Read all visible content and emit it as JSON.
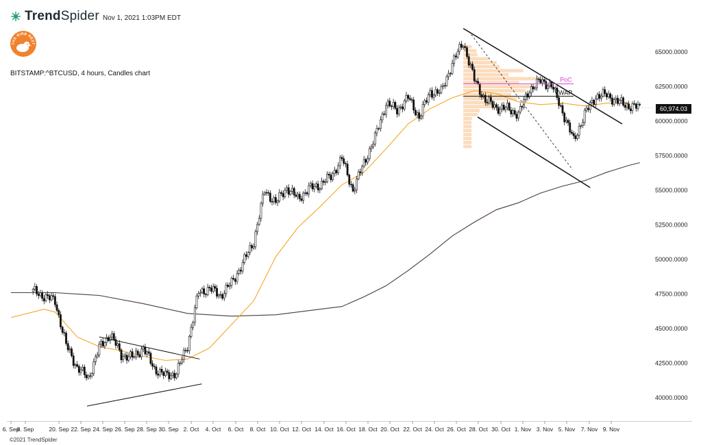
{
  "header": {
    "brand_bold": "Trend",
    "brand_light": "Spider",
    "timestamp": "Nov 1, 2021 1:03PM EDT",
    "logo_text": "THE BIRB NEST"
  },
  "symbol_line": "BITSTAMP:^BTCUSD, 4 hours, Candles chart",
  "last_price": "60,974.03",
  "footer": {
    "copyright": "©2021 TrendSpider"
  },
  "colors": {
    "up": "#ffffff",
    "down": "#111111",
    "outline": "#111111",
    "ema_short": "#f5a623",
    "sma_long": "#4a3a36",
    "volume_profile": "#fbdcbd",
    "poc": "#d147d6",
    "vwap": "#111111",
    "logo": "#f0822f"
  },
  "chart_data": {
    "type": "candlestick",
    "symbol": "BITSTAMP:^BTCUSD",
    "interval": "4 hours",
    "x_axis": {
      "tick_labels": [
        "6. Sep",
        "8. Sep",
        "20. Sep",
        "22. Sep",
        "24. Sep",
        "26. Sep",
        "28. Sep",
        "30. Sep",
        "2. Oct",
        "4. Oct",
        "6. Oct",
        "8. Oct",
        "10. Oct",
        "12. Oct",
        "14. Oct",
        "16. Oct",
        "18. Oct",
        "20. Oct",
        "22. Oct",
        "24. Oct",
        "26. Oct",
        "28. Oct",
        "30. Oct",
        "1. Nov",
        "3. Nov",
        "5. Nov",
        "7. Nov",
        "9. Nov"
      ]
    },
    "y_axis": {
      "range": [
        38500,
        67500
      ],
      "tick_values": [
        40000,
        42500,
        45000,
        47500,
        50000,
        52500,
        55000,
        57500,
        60000,
        62500,
        65000
      ],
      "tick_labels": [
        "40000.0000",
        "42500.0000",
        "45000.0000",
        "47500.0000",
        "50000.0000",
        "52500.0000",
        "55000.0000",
        "57500.0000",
        "60000.0000",
        "62500.0000",
        "65000.0000"
      ]
    },
    "closes_by_day": [
      [
        17,
        47700
      ],
      [
        19,
        47000
      ],
      [
        20,
        43800
      ],
      [
        21,
        42200
      ],
      [
        22,
        41400
      ],
      [
        23,
        43600
      ],
      [
        24,
        44600
      ],
      [
        25,
        43100
      ],
      [
        26,
        42900
      ],
      [
        27,
        43600
      ],
      [
        28,
        42100
      ],
      [
        29,
        41600
      ],
      [
        30,
        41800
      ],
      [
        31,
        43800
      ],
      [
        32,
        47600
      ],
      [
        33,
        47900
      ],
      [
        34,
        47400
      ],
      [
        35,
        48300
      ],
      [
        36,
        49700
      ],
      [
        37,
        51300
      ],
      [
        38,
        55000
      ],
      [
        39,
        54100
      ],
      [
        40,
        55200
      ],
      [
        41,
        54400
      ],
      [
        42,
        55100
      ],
      [
        43,
        55400
      ],
      [
        44,
        56000
      ],
      [
        45,
        57300
      ],
      [
        46,
        55000
      ],
      [
        47,
        57000
      ],
      [
        48,
        58800
      ],
      [
        49,
        61300
      ],
      [
        50,
        60800
      ],
      [
        51,
        61700
      ],
      [
        52,
        60300
      ],
      [
        53,
        62100
      ],
      [
        54,
        62100
      ],
      [
        55,
        64200
      ],
      [
        56,
        65700
      ],
      [
        57,
        63000
      ],
      [
        58,
        61500
      ],
      [
        59,
        61000
      ],
      [
        60,
        60900
      ],
      [
        61,
        60500
      ],
      [
        62,
        62300
      ],
      [
        63,
        62900
      ],
      [
        64,
        62600
      ],
      [
        65,
        60700
      ],
      [
        66,
        58600
      ],
      [
        67,
        60500
      ],
      [
        68,
        61800
      ],
      [
        69,
        61900
      ],
      [
        70,
        61400
      ],
      [
        71,
        61100
      ],
      [
        72,
        60974
      ]
    ],
    "indicators": [
      {
        "kind": "ema_short",
        "values_by_day": [
          [
            15,
            45800
          ],
          [
            18,
            46400
          ],
          [
            19,
            46200
          ],
          [
            21,
            44400
          ],
          [
            23,
            43700
          ],
          [
            25,
            43400
          ],
          [
            27,
            43000
          ],
          [
            29,
            42700
          ],
          [
            31,
            42800
          ],
          [
            33,
            43600
          ],
          [
            35,
            45300
          ],
          [
            37,
            47000
          ],
          [
            39,
            50200
          ],
          [
            41,
            52300
          ],
          [
            43,
            53800
          ],
          [
            45,
            55400
          ],
          [
            47,
            56300
          ],
          [
            49,
            58000
          ],
          [
            51,
            59800
          ],
          [
            53,
            60900
          ],
          [
            55,
            61700
          ],
          [
            57,
            62200
          ],
          [
            59,
            62000
          ],
          [
            61,
            61400
          ],
          [
            63,
            61200
          ],
          [
            65,
            61300
          ],
          [
            67,
            61100
          ],
          [
            69,
            61300
          ],
          [
            71,
            61300
          ]
        ]
      },
      {
        "kind": "sma_long",
        "values_by_day": [
          [
            15,
            47600
          ],
          [
            19,
            47600
          ],
          [
            23,
            47400
          ],
          [
            27,
            46800
          ],
          [
            31,
            46100
          ],
          [
            35,
            45900
          ],
          [
            39,
            46000
          ],
          [
            43,
            46400
          ],
          [
            45,
            46600
          ],
          [
            47,
            47300
          ],
          [
            49,
            48100
          ],
          [
            51,
            49200
          ],
          [
            53,
            50400
          ],
          [
            55,
            51700
          ],
          [
            57,
            52700
          ],
          [
            59,
            53600
          ],
          [
            61,
            54100
          ],
          [
            63,
            54800
          ],
          [
            65,
            55300
          ],
          [
            67,
            55700
          ],
          [
            69,
            56300
          ],
          [
            71,
            56800
          ],
          [
            72,
            57000
          ]
        ]
      }
    ],
    "annotations": {
      "poc_label": "PoC",
      "poc_price": 62700,
      "vwap_label": "VWAP",
      "vwap_price": 61800,
      "volume_profile_range": [
        58000,
        65500
      ],
      "trendlines": [
        {
          "from": [
            21.9,
            39400
          ],
          "to": [
            32.3,
            41000
          ]
        },
        {
          "from": [
            23.0,
            44400
          ],
          "to": [
            32.1,
            42800
          ]
        },
        {
          "from": [
            56.0,
            66700
          ],
          "to": [
            70.4,
            59800
          ]
        },
        {
          "from": [
            57.3,
            60300
          ],
          "to": [
            67.5,
            55200
          ]
        },
        {
          "from": [
            56.5,
            66500
          ],
          "to": [
            65.9,
            56500
          ],
          "dashed": true
        }
      ]
    }
  }
}
